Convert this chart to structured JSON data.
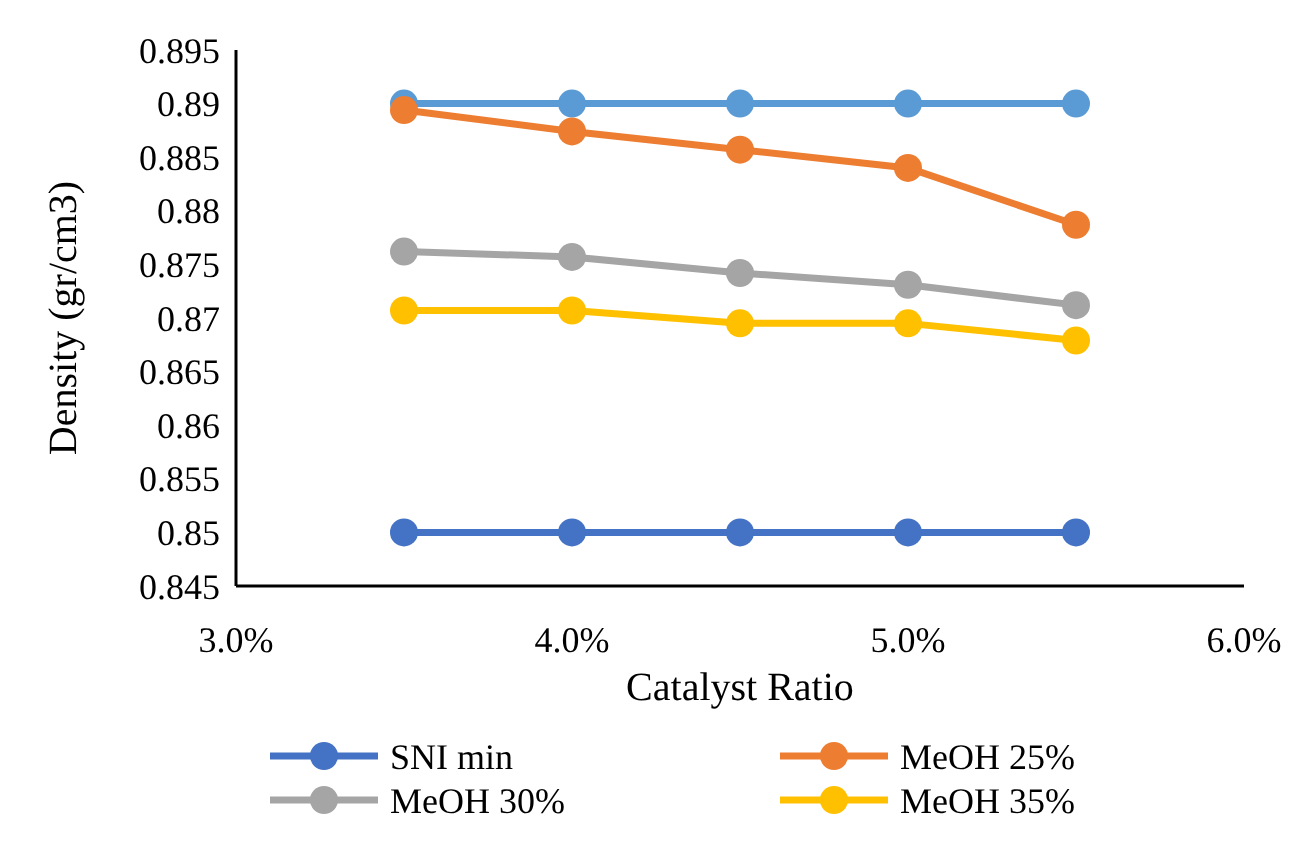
{
  "chart_data": {
    "type": "line",
    "xlabel": "Catalyst Ratio",
    "ylabel": "Density (gr/cm3)",
    "x": [
      3.5,
      4,
      4.5,
      5,
      5.5
    ],
    "xlim": [
      3,
      6
    ],
    "xticks": [
      {
        "value": 3,
        "label": "3.0%"
      },
      {
        "value": 4,
        "label": "4.0%"
      },
      {
        "value": 5,
        "label": "5.0%"
      },
      {
        "value": 6,
        "label": "6.0%"
      }
    ],
    "ylim": [
      0.845,
      0.895
    ],
    "yticks": [
      0.845,
      0.85,
      0.855,
      0.86,
      0.865,
      0.87,
      0.875,
      0.88,
      0.885,
      0.89,
      0.895
    ],
    "marker": "circle",
    "legend": "bottom",
    "series": [
      {
        "color": "#5b9bd5",
        "values": [
          0.89,
          0.89,
          0.89,
          0.89,
          0.89
        ]
      },
      {
        "name": "SNI min",
        "color": "#4472c4",
        "values": [
          0.85,
          0.85,
          0.85,
          0.85,
          0.85
        ]
      },
      {
        "name": "MeOH 25%",
        "color": "#ed7d31",
        "values": [
          0.8894,
          0.8874,
          0.8857,
          0.884,
          0.8787
        ]
      },
      {
        "name": "MeOH 30%",
        "color": "#a5a5a5",
        "values": [
          0.8762,
          0.8757,
          0.8742,
          0.8731,
          0.8712
        ]
      },
      {
        "name": "MeOH 35%",
        "color": "#ffc000",
        "values": [
          0.8707,
          0.8707,
          0.8695,
          0.8695,
          0.8679
        ]
      }
    ]
  }
}
